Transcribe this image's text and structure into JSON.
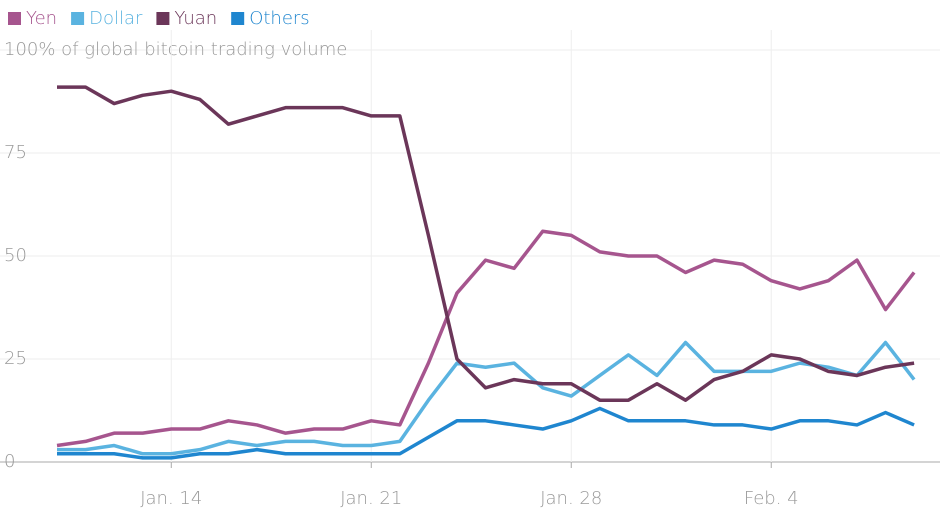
{
  "chart_data": {
    "type": "line",
    "categories": [
      null,
      null,
      null,
      null,
      "Jan. 14",
      null,
      null,
      null,
      null,
      null,
      null,
      "Jan. 21",
      null,
      null,
      null,
      null,
      null,
      null,
      "Jan. 28",
      null,
      null,
      null,
      null,
      null,
      null,
      "Feb. 4",
      null,
      null,
      null,
      null,
      null
    ],
    "series": [
      {
        "name": "Yen",
        "color": "#a6558e",
        "values": [
          4,
          5,
          7,
          7,
          8,
          8,
          10,
          9,
          7,
          8,
          8,
          10,
          9,
          24,
          41,
          49,
          47,
          56,
          55,
          51,
          50,
          50,
          46,
          49,
          48,
          44,
          42,
          44,
          49,
          37,
          46
        ]
      },
      {
        "name": "Dollar",
        "color": "#5ab3e0",
        "values": [
          3,
          3,
          4,
          2,
          2,
          3,
          5,
          4,
          5,
          5,
          4,
          4,
          5,
          15,
          24,
          23,
          24,
          18,
          16,
          21,
          26,
          21,
          29,
          22,
          22,
          22,
          24,
          23,
          21,
          29,
          20
        ]
      },
      {
        "name": "Yuan",
        "color": "#6b3659",
        "values": [
          91,
          91,
          87,
          89,
          90,
          88,
          82,
          84,
          86,
          86,
          86,
          84,
          84,
          55,
          25,
          18,
          20,
          19,
          19,
          15,
          15,
          19,
          15,
          20,
          22,
          26,
          25,
          22,
          21,
          23,
          24
        ]
      },
      {
        "name": "Others",
        "color": "#1f86cf",
        "values": [
          2,
          2,
          2,
          1,
          1,
          2,
          2,
          3,
          2,
          2,
          2,
          2,
          2,
          6,
          10,
          10,
          9,
          8,
          10,
          13,
          10,
          10,
          10,
          9,
          9,
          8,
          10,
          10,
          9,
          12,
          9
        ]
      }
    ],
    "ylim": [
      0,
      100
    ],
    "yticks": [
      0,
      25,
      50,
      75,
      {
        "value": 100,
        "label": "100% of global bitcoin trading volume"
      }
    ],
    "grid": true
  }
}
